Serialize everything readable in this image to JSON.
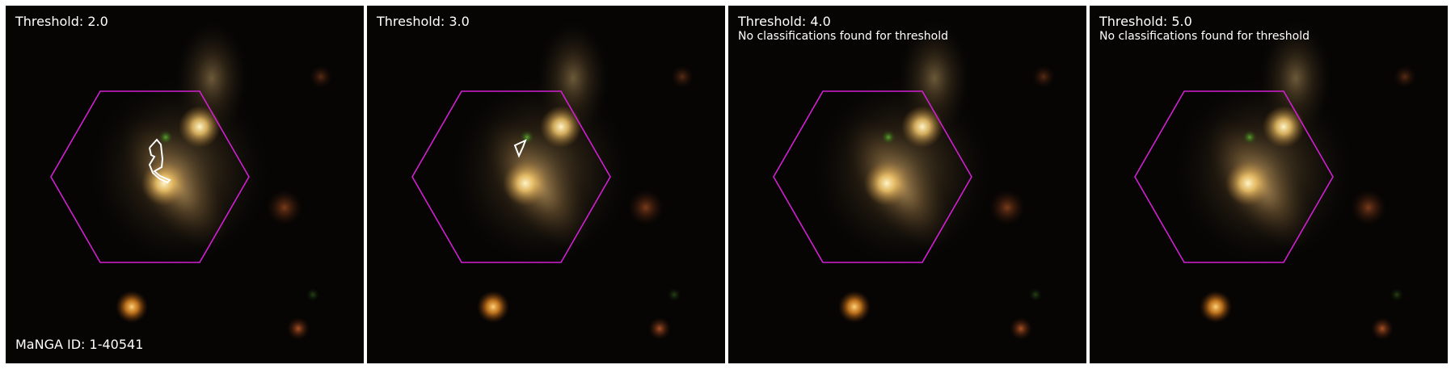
{
  "figure": {
    "manga_id_label": "MaNGA ID: 1-40541",
    "hexagon_color": "#d21fd2",
    "contour_color": "#ffffff",
    "panels": [
      {
        "title": "Threshold: 2.0",
        "note": "",
        "has_contour": true
      },
      {
        "title": "Threshold: 3.0",
        "note": "",
        "has_contour": true
      },
      {
        "title": "Threshold: 4.0",
        "note": "No classifications found for threshold",
        "has_contour": false
      },
      {
        "title": "Threshold: 5.0",
        "note": "No classifications found for threshold",
        "has_contour": false
      }
    ]
  }
}
